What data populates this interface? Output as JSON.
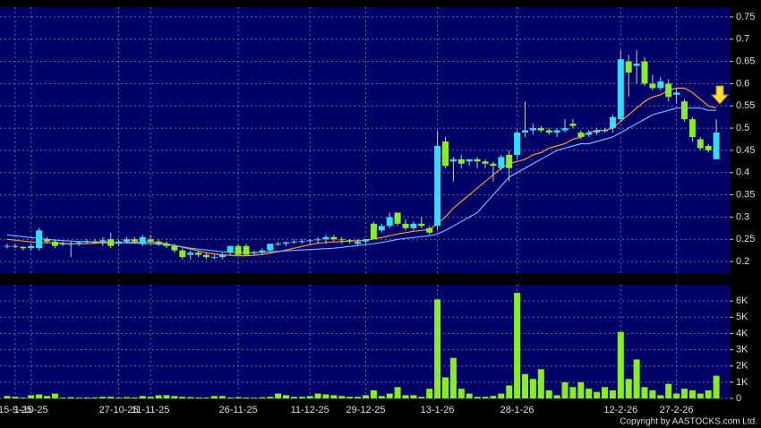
{
  "chart_data": [
    {
      "type": "candlestick",
      "up_color": "#33ddff",
      "down_color": "#88ee22",
      "open": [
        0.235,
        0.235,
        0.233,
        0.23,
        0.23,
        0.25,
        0.245,
        0.24,
        0.24,
        0.24,
        0.243,
        0.245,
        0.245,
        0.25,
        0.24,
        0.245,
        0.25,
        0.24,
        0.25,
        0.245,
        0.24,
        0.235,
        0.225,
        0.215,
        0.22,
        0.215,
        0.21,
        0.21,
        0.22,
        0.235,
        0.235,
        0.22,
        0.22,
        0.225,
        0.24,
        0.24,
        0.243,
        0.245,
        0.246,
        0.248,
        0.25,
        0.255,
        0.25,
        0.248,
        0.24,
        0.245,
        0.285,
        0.27,
        0.28,
        0.31,
        0.285,
        0.275,
        0.285,
        0.275,
        0.28,
        0.47,
        0.425,
        0.43,
        0.425,
        0.43,
        0.425,
        0.42,
        0.41,
        0.44,
        0.44,
        0.49,
        0.495,
        0.5,
        0.495,
        0.49,
        0.495,
        0.51,
        0.49,
        0.485,
        0.49,
        0.495,
        0.5,
        0.52,
        0.65,
        0.64,
        0.65,
        0.6,
        0.59,
        0.6,
        0.575,
        0.56,
        0.52,
        0.475,
        0.46,
        0.43
      ],
      "high": [
        0.24,
        0.24,
        0.235,
        0.24,
        0.275,
        0.255,
        0.25,
        0.245,
        0.245,
        0.245,
        0.25,
        0.25,
        0.255,
        0.265,
        0.25,
        0.255,
        0.255,
        0.26,
        0.26,
        0.25,
        0.245,
        0.24,
        0.23,
        0.225,
        0.225,
        0.22,
        0.215,
        0.22,
        0.235,
        0.24,
        0.24,
        0.225,
        0.23,
        0.24,
        0.245,
        0.245,
        0.25,
        0.25,
        0.25,
        0.255,
        0.26,
        0.26,
        0.255,
        0.25,
        0.25,
        0.25,
        0.29,
        0.285,
        0.31,
        0.31,
        0.295,
        0.29,
        0.3,
        0.28,
        0.495,
        0.48,
        0.435,
        0.44,
        0.43,
        0.435,
        0.43,
        0.425,
        0.44,
        0.45,
        0.495,
        0.56,
        0.51,
        0.505,
        0.5,
        0.5,
        0.52,
        0.52,
        0.495,
        0.495,
        0.5,
        0.5,
        0.53,
        0.675,
        0.665,
        0.675,
        0.66,
        0.62,
        0.615,
        0.61,
        0.59,
        0.565,
        0.525,
        0.48,
        0.465,
        0.52
      ],
      "low": [
        0.23,
        0.23,
        0.225,
        0.225,
        0.225,
        0.24,
        0.23,
        0.235,
        0.21,
        0.235,
        0.24,
        0.24,
        0.235,
        0.23,
        0.235,
        0.24,
        0.24,
        0.235,
        0.24,
        0.235,
        0.23,
        0.22,
        0.205,
        0.205,
        0.21,
        0.205,
        0.205,
        0.205,
        0.215,
        0.215,
        0.215,
        0.215,
        0.215,
        0.22,
        0.235,
        0.235,
        0.24,
        0.24,
        0.24,
        0.24,
        0.24,
        0.245,
        0.24,
        0.24,
        0.235,
        0.24,
        0.25,
        0.265,
        0.275,
        0.28,
        0.27,
        0.27,
        0.275,
        0.26,
        0.27,
        0.41,
        0.38,
        0.41,
        0.415,
        0.41,
        0.41,
        0.38,
        0.405,
        0.38,
        0.43,
        0.48,
        0.485,
        0.49,
        0.485,
        0.48,
        0.49,
        0.5,
        0.475,
        0.48,
        0.485,
        0.49,
        0.49,
        0.515,
        0.57,
        0.6,
        0.595,
        0.585,
        0.585,
        0.56,
        0.555,
        0.515,
        0.47,
        0.45,
        0.445,
        0.43
      ],
      "close": [
        0.235,
        0.233,
        0.23,
        0.235,
        0.27,
        0.245,
        0.235,
        0.24,
        0.24,
        0.243,
        0.245,
        0.242,
        0.248,
        0.235,
        0.245,
        0.25,
        0.245,
        0.255,
        0.245,
        0.24,
        0.235,
        0.225,
        0.21,
        0.22,
        0.215,
        0.21,
        0.21,
        0.215,
        0.235,
        0.215,
        0.215,
        0.22,
        0.225,
        0.24,
        0.24,
        0.243,
        0.245,
        0.246,
        0.248,
        0.25,
        0.255,
        0.25,
        0.248,
        0.245,
        0.245,
        0.25,
        0.25,
        0.28,
        0.3,
        0.285,
        0.275,
        0.285,
        0.28,
        0.265,
        0.46,
        0.415,
        0.43,
        0.42,
        0.43,
        0.425,
        0.42,
        0.415,
        0.435,
        0.41,
        0.49,
        0.495,
        0.5,
        0.495,
        0.49,
        0.495,
        0.5,
        0.505,
        0.48,
        0.49,
        0.495,
        0.495,
        0.525,
        0.655,
        0.625,
        0.645,
        0.6,
        0.59,
        0.605,
        0.57,
        0.58,
        0.52,
        0.48,
        0.455,
        0.45,
        0.49
      ],
      "series": [
        {
          "color": "#ff9933",
          "values": [
            0.25,
            0.248,
            0.246,
            0.244,
            0.243,
            0.242,
            0.242,
            0.241,
            0.24,
            0.24,
            0.24,
            0.241,
            0.242,
            0.242,
            0.242,
            0.243,
            0.243,
            0.244,
            0.244,
            0.243,
            0.24,
            0.236,
            0.232,
            0.228,
            0.224,
            0.22,
            0.217,
            0.215,
            0.214,
            0.213,
            0.213,
            0.214,
            0.216,
            0.219,
            0.222,
            0.226,
            0.23,
            0.234,
            0.238,
            0.241,
            0.243,
            0.244,
            0.245,
            0.246,
            0.247,
            0.248,
            0.251,
            0.254,
            0.258,
            0.262,
            0.265,
            0.268,
            0.27,
            0.272,
            0.285,
            0.3,
            0.32,
            0.335,
            0.35,
            0.365,
            0.38,
            0.395,
            0.41,
            0.42,
            0.425,
            0.43,
            0.44,
            0.445,
            0.455,
            0.46,
            0.465,
            0.475,
            0.48,
            0.49,
            0.495,
            0.495,
            0.5,
            0.515,
            0.53,
            0.545,
            0.56,
            0.57,
            0.575,
            0.585,
            0.59,
            0.59,
            0.58,
            0.565,
            0.55,
            0.545
          ]
        },
        {
          "color": "#66bbff",
          "values": [
            0.26,
            0.258,
            0.256,
            0.254,
            0.252,
            0.25,
            0.248,
            0.247,
            0.246,
            0.245,
            0.245,
            0.244,
            0.244,
            0.243,
            0.242,
            0.242,
            0.241,
            0.24,
            0.24,
            0.239,
            0.238,
            0.236,
            0.233,
            0.23,
            0.228,
            0.226,
            0.224,
            0.222,
            0.221,
            0.22,
            0.22,
            0.22,
            0.221,
            0.222,
            0.223,
            0.224,
            0.225,
            0.226,
            0.227,
            0.228,
            0.229,
            0.23,
            0.232,
            0.234,
            0.236,
            0.238,
            0.24,
            0.243,
            0.246,
            0.25,
            0.252,
            0.254,
            0.256,
            0.258,
            0.262,
            0.27,
            0.28,
            0.29,
            0.3,
            0.31,
            0.33,
            0.35,
            0.37,
            0.39,
            0.4,
            0.41,
            0.42,
            0.43,
            0.44,
            0.45,
            0.455,
            0.46,
            0.465,
            0.465,
            0.47,
            0.475,
            0.48,
            0.49,
            0.5,
            0.51,
            0.52,
            0.53,
            0.535,
            0.54,
            0.545,
            0.545,
            0.545,
            0.545,
            0.54,
            0.54
          ]
        }
      ],
      "ylim": [
        0.174,
        0.772
      ],
      "yticks": [
        0.2,
        0.25,
        0.3,
        0.35,
        0.4,
        0.45,
        0.5,
        0.55,
        0.6,
        0.65,
        0.7,
        0.75
      ],
      "grid": true
    },
    {
      "type": "bar",
      "color": "#88ee22",
      "categories": [
        null,
        "15-9-25",
        null,
        "1-10-25",
        null,
        null,
        null,
        null,
        null,
        null,
        null,
        null,
        null,
        null,
        "27-10-25",
        null,
        null,
        null,
        "11-11-25",
        null,
        null,
        null,
        null,
        null,
        null,
        null,
        null,
        null,
        null,
        "26-11-25",
        null,
        null,
        null,
        null,
        null,
        null,
        null,
        null,
        "11-12-25",
        null,
        null,
        null,
        null,
        null,
        null,
        "29-12-25",
        null,
        null,
        null,
        null,
        null,
        null,
        null,
        null,
        "13-1-26",
        null,
        null,
        null,
        null,
        null,
        null,
        null,
        null,
        null,
        "28-1-26",
        null,
        null,
        null,
        null,
        null,
        null,
        null,
        null,
        null,
        null,
        null,
        null,
        "12-2-26",
        null,
        null,
        null,
        null,
        null,
        null,
        "27-2-26",
        null,
        null,
        null,
        null,
        null
      ],
      "values": [
        150,
        100,
        50,
        200,
        250,
        150,
        300,
        50,
        80,
        50,
        60,
        60,
        100,
        100,
        50,
        80,
        60,
        150,
        100,
        200,
        200,
        150,
        100,
        80,
        60,
        50,
        150,
        150,
        60,
        80,
        60,
        50,
        70,
        100,
        300,
        200,
        100,
        100,
        150,
        300,
        250,
        200,
        150,
        100,
        100,
        200,
        500,
        150,
        300,
        700,
        200,
        200,
        100,
        600,
        6100,
        1300,
        2500,
        600,
        300,
        100,
        100,
        150,
        300,
        800,
        6500,
        1500,
        1200,
        1800,
        500,
        200,
        1000,
        700,
        1000,
        600,
        400,
        700,
        500,
        4100,
        1200,
        2400,
        700,
        500,
        200,
        900,
        300,
        600,
        500,
        300,
        500,
        1400
      ],
      "ylim": [
        0,
        7000
      ],
      "yticks": [
        0,
        {
          "value": 1000,
          "label": "1K"
        },
        {
          "value": 2000,
          "label": "2K"
        },
        {
          "value": 3000,
          "label": "3K"
        },
        {
          "value": 4000,
          "label": "4K"
        },
        {
          "value": 5000,
          "label": "5K"
        },
        {
          "value": 6000,
          "label": "6K"
        }
      ],
      "grid": true
    }
  ],
  "copyright": "Copyright by AASTOCKS.com Ltd."
}
